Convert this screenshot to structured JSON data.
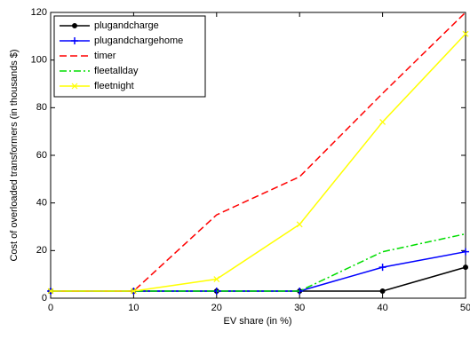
{
  "chart_data": {
    "type": "line",
    "x_label": "EV share (in %)",
    "y_label": "Cost of overloaded transformers (in thousands $)",
    "x": [
      0,
      10,
      20,
      30,
      40,
      50
    ],
    "series": [
      {
        "name": "plugandcharge",
        "color": "#000000",
        "dash": "solid",
        "marker": "star",
        "values": [
          3,
          3,
          3,
          3,
          3,
          13
        ]
      },
      {
        "name": "plugandchargehome",
        "color": "#0000ff",
        "dash": "solid",
        "marker": "plus",
        "values": [
          3,
          3,
          3,
          3,
          13,
          19.5
        ]
      },
      {
        "name": "timer",
        "color": "#ff0000",
        "dash": "dashed",
        "marker": "none",
        "values": [
          3,
          3,
          35,
          51,
          86,
          120
        ]
      },
      {
        "name": "fleetallday",
        "color": "#00dd00",
        "dash": "dashdot",
        "marker": "none",
        "values": [
          3,
          3,
          3,
          3,
          19.5,
          27
        ]
      },
      {
        "name": "fleetnight",
        "color": "#ffff00",
        "dash": "solid",
        "marker": "x",
        "values": [
          3,
          3,
          8,
          31,
          74,
          111
        ]
      }
    ],
    "xlim": [
      0,
      50
    ],
    "xticks": [
      0,
      10,
      20,
      30,
      40,
      50
    ],
    "ylim": [
      0,
      120
    ],
    "yticks": [
      0,
      20,
      40,
      60,
      80,
      100,
      120
    ],
    "legend": "upper left"
  }
}
